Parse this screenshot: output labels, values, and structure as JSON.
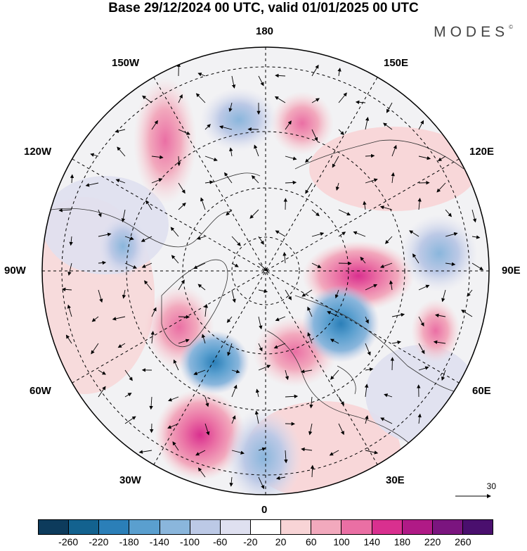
{
  "header": {
    "title": "Base 29/12/2024 00 UTC, valid 01/01/2025 00 UTC",
    "brand": "MODES"
  },
  "map": {
    "projection": "polar stereographic, north pole",
    "longitude_labels": {
      "top": "180",
      "bottom": "0",
      "left": "90W",
      "right": "90E",
      "upper_left_1": "150W",
      "upper_left_2": "120W",
      "upper_right_1": "150E",
      "upper_right_2": "120E",
      "lower_left_1": "60W",
      "lower_left_2": "30W",
      "lower_right_1": "60E",
      "lower_right_2": "30E"
    },
    "reference_vector": "30",
    "anomaly_centers": [
      {
        "sign": "positive",
        "strength": "strong",
        "region": "Siberia near 90E"
      },
      {
        "sign": "positive",
        "strength": "strong",
        "region": "North Atlantic near 30W"
      },
      {
        "sign": "positive",
        "strength": "moderate",
        "region": "Greenland / Labrador"
      },
      {
        "sign": "positive",
        "strength": "moderate",
        "region": "Scandinavia"
      },
      {
        "sign": "positive",
        "strength": "moderate",
        "region": "North Pacific near 150W"
      },
      {
        "sign": "positive",
        "strength": "moderate",
        "region": "Bering Strait near 180"
      },
      {
        "sign": "negative",
        "strength": "strong",
        "region": "Barents / Ural near 60E"
      },
      {
        "sign": "negative",
        "strength": "strong",
        "region": "North Atlantic near 45W"
      },
      {
        "sign": "negative",
        "strength": "moderate",
        "region": "Europe near 0"
      },
      {
        "sign": "negative",
        "strength": "moderate",
        "region": "North Pacific near 170W"
      },
      {
        "sign": "negative",
        "strength": "weak",
        "region": "Central Asia near 90E"
      }
    ]
  },
  "colorbar": {
    "tick_labels": [
      "-260",
      "-220",
      "-180",
      "-140",
      "-100",
      "-60",
      "-20",
      "20",
      "60",
      "100",
      "140",
      "180",
      "220",
      "260"
    ],
    "colors": [
      "#0d3b5c",
      "#13628f",
      "#2b7fb8",
      "#5a9fcf",
      "#8ab6dc",
      "#bcc9e6",
      "#dfe0f0",
      "#ffffff",
      "#f8d4d6",
      "#f2a9bd",
      "#ea6fa4",
      "#d9308f",
      "#b01a86",
      "#7b157f",
      "#4a0f6e"
    ]
  }
}
